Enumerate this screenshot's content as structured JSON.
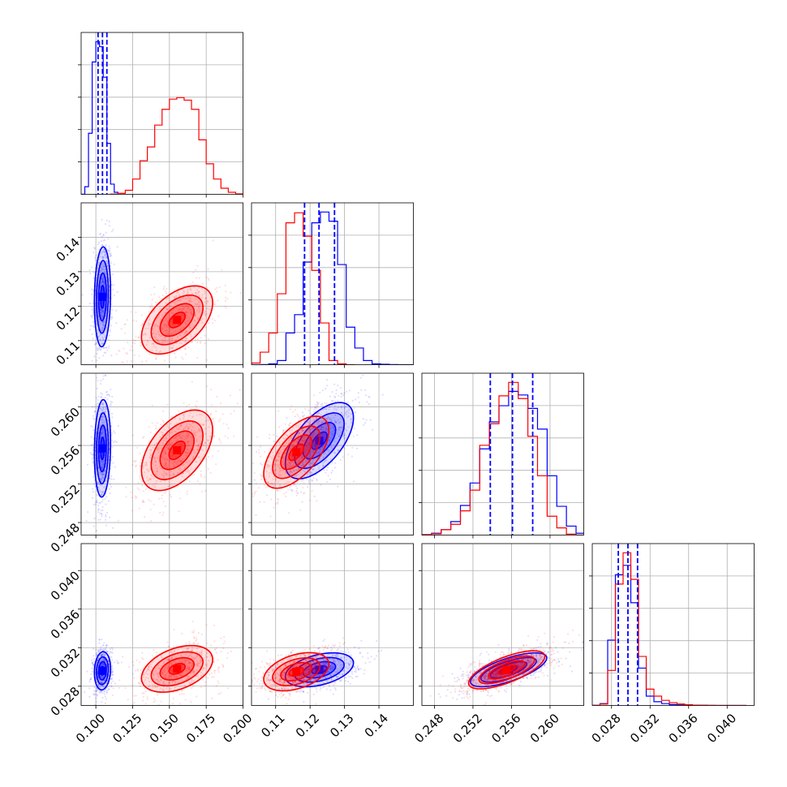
{
  "chart_data": {
    "type": "corner",
    "title": "",
    "grid": true,
    "series": [
      {
        "color": "#0000ff"
      },
      {
        "color": "#ff0000"
      }
    ],
    "parameters": [
      {
        "range": [
          0.09,
          0.2
        ],
        "ticks": [
          0.1,
          0.125,
          0.15,
          0.175,
          0.2
        ],
        "tick_labels": [
          "0.100",
          "0.125",
          "0.150",
          "0.175",
          "0.200"
        ],
        "quantiles_blue": [
          0.1015,
          0.1045,
          0.1075
        ],
        "hist": {
          "blue": {
            "bins": [
              0.09,
              0.0925,
              0.095,
              0.0975,
              0.1,
              0.1025,
              0.105,
              0.1075,
              0.11,
              0.1125,
              0.115
            ],
            "counts": [
              2,
              150,
              1200,
              2600,
              3000,
              2900,
              2300,
              1000,
              200,
              40
            ]
          },
          "red": {
            "bins": [
              0.11,
              0.115,
              0.12,
              0.125,
              0.13,
              0.135,
              0.14,
              0.145,
              0.15,
              0.155,
              0.16,
              0.165,
              0.17,
              0.175,
              0.18,
              0.185,
              0.19,
              0.195,
              0.2
            ],
            "counts": [
              5,
              20,
              80,
              300,
              660,
              930,
              1360,
              1670,
              1870,
              1900,
              1850,
              1670,
              1070,
              600,
              300,
              120,
              40,
              8
            ]
          }
        }
      },
      {
        "range": [
          0.103,
          0.15
        ],
        "ticks": [
          0.11,
          0.12,
          0.13,
          0.14
        ],
        "tick_labels": [
          "0.11",
          "0.12",
          "0.13",
          "0.14"
        ],
        "quantiles_blue": [
          0.1184,
          0.1226,
          0.1271
        ],
        "hist": {
          "blue": {
            "bins": [
              0.103,
              0.1055,
              0.108,
              0.1105,
              0.113,
              0.1155,
              0.118,
              0.1205,
              0.123,
              0.1255,
              0.128,
              0.1305,
              0.133,
              0.1355,
              0.138,
              0.1405,
              0.143,
              0.1455,
              0.148,
              0.1505
            ],
            "counts": [
              0,
              2,
              10,
              50,
              380,
              600,
              1230,
              1700,
              1830,
              1720,
              1200,
              450,
              200,
              50,
              10,
              5,
              2,
              0,
              0
            ]
          },
          "red": {
            "bins": [
              0.103,
              0.1055,
              0.108,
              0.1105,
              0.113,
              0.1155,
              0.118,
              0.1205,
              0.123,
              0.1255,
              0.128,
              0.1305,
              0.133
            ],
            "counts": [
              20,
              150,
              380,
              850,
              1700,
              1820,
              1540,
              1130,
              500,
              50,
              10,
              0
            ]
          }
        }
      },
      {
        "range": [
          0.2467,
          0.2635
        ],
        "ticks": [
          0.248,
          0.252,
          0.256,
          0.26
        ],
        "tick_labels": [
          "0.248",
          "0.252",
          "0.256",
          "0.260"
        ],
        "quantiles_blue": [
          0.2538,
          0.2561,
          0.2582
        ],
        "hist": {
          "blue": {
            "bins": [
              0.2467,
              0.2477,
              0.2487,
              0.2497,
              0.2507,
              0.2517,
              0.2527,
              0.2537,
              0.2547,
              0.2557,
              0.2567,
              0.2577,
              0.2587,
              0.2597,
              0.2607,
              0.2617,
              0.2627,
              0.2637
            ],
            "counts": [
              5,
              20,
              60,
              150,
              330,
              580,
              960,
              1260,
              1440,
              1600,
              1560,
              1410,
              1180,
              660,
              320,
              100,
              20
            ]
          },
          "red": {
            "bins": [
              0.2467,
              0.2477,
              0.2487,
              0.2497,
              0.2507,
              0.2517,
              0.2527,
              0.2537,
              0.2547,
              0.2557,
              0.2567,
              0.2577,
              0.2587,
              0.2597,
              0.2607,
              0.2617,
              0.2627,
              0.2637
            ],
            "counts": [
              5,
              15,
              60,
              120,
              270,
              500,
              1000,
              1240,
              1550,
              1700,
              1520,
              1100,
              660,
              210,
              80,
              10,
              0
            ]
          }
        }
      },
      {
        "range": [
          0.026,
          0.0428
        ],
        "ticks": [
          0.028,
          0.032,
          0.036,
          0.04
        ],
        "tick_labels": [
          "0.028",
          "0.032",
          "0.036",
          "0.040"
        ],
        "quantiles_blue": [
          0.0287,
          0.0297,
          0.0307
        ],
        "hist": {
          "blue": {
            "bins": [
              0.026,
              0.0268,
              0.0276,
              0.0284,
              0.0292,
              0.03,
              0.0308,
              0.0316,
              0.0324,
              0.0332,
              0.034,
              0.0348,
              0.0356,
              0.0364,
              0.0372,
              0.038,
              0.0388,
              0.0396,
              0.0404,
              0.0412,
              0.042
            ],
            "counts": [
              2,
              40,
              1400,
              2800,
              3000,
              2200,
              800,
              200,
              80,
              40,
              20,
              10,
              5,
              3,
              2,
              1,
              0,
              0,
              0,
              0
            ]
          },
          "red": {
            "bins": [
              0.026,
              0.0268,
              0.0276,
              0.0284,
              0.0292,
              0.03,
              0.0308,
              0.0316,
              0.0324,
              0.0332,
              0.034,
              0.0348,
              0.0356,
              0.0364,
              0.0372,
              0.038,
              0.0388,
              0.0396,
              0.0404,
              0.0412,
              0.042
            ],
            "counts": [
              2,
              30,
              750,
              2600,
              3270,
              2700,
              1050,
              350,
              200,
              110,
              60,
              30,
              15,
              8,
              4,
              2,
              1,
              1,
              1,
              0
            ]
          }
        }
      }
    ],
    "pairs": [
      {
        "row": 1,
        "col": 0,
        "blue": {
          "mean": [
            0.1045,
            0.1227
          ],
          "sd": [
            0.0025,
            0.0066
          ],
          "rho": 0.1
        },
        "red": {
          "mean": [
            0.1552,
            0.116
          ],
          "sd": [
            0.011,
            0.0045
          ],
          "rho": 0.5
        }
      },
      {
        "row": 2,
        "col": 0,
        "blue": {
          "mean": [
            0.1045,
            0.2557
          ],
          "sd": [
            0.0025,
            0.0023
          ],
          "rho": 0.1
        },
        "red": {
          "mean": [
            0.1552,
            0.2555
          ],
          "sd": [
            0.011,
            0.0019
          ],
          "rho": 0.5
        }
      },
      {
        "row": 2,
        "col": 1,
        "blue": {
          "mean": [
            0.1227,
            0.2565
          ],
          "sd": [
            0.0045,
            0.0018
          ],
          "rho": 0.6
        },
        "red": {
          "mean": [
            0.116,
            0.2553
          ],
          "sd": [
            0.0043,
            0.0017
          ],
          "rho": 0.6
        }
      },
      {
        "row": 3,
        "col": 0,
        "blue": {
          "mean": [
            0.1045,
            0.0296
          ],
          "sd": [
            0.0025,
            0.0009
          ],
          "rho": 0.1
        },
        "red": {
          "mean": [
            0.1552,
            0.0298
          ],
          "sd": [
            0.011,
            0.0011
          ],
          "rho": 0.4
        }
      },
      {
        "row": 3,
        "col": 1,
        "blue": {
          "mean": [
            0.1227,
            0.0297
          ],
          "sd": [
            0.0045,
            0.0008
          ],
          "rho": 0.4
        },
        "red": {
          "mean": [
            0.116,
            0.0295
          ],
          "sd": [
            0.0043,
            0.0009
          ],
          "rho": 0.4
        }
      },
      {
        "row": 3,
        "col": 2,
        "blue": {
          "mean": [
            0.2557,
            0.0297
          ],
          "sd": [
            0.0018,
            0.0008
          ],
          "rho": 0.7
        },
        "red": {
          "mean": [
            0.2555,
            0.0297
          ],
          "sd": [
            0.0018,
            0.0009
          ],
          "rho": 0.7
        }
      }
    ]
  }
}
